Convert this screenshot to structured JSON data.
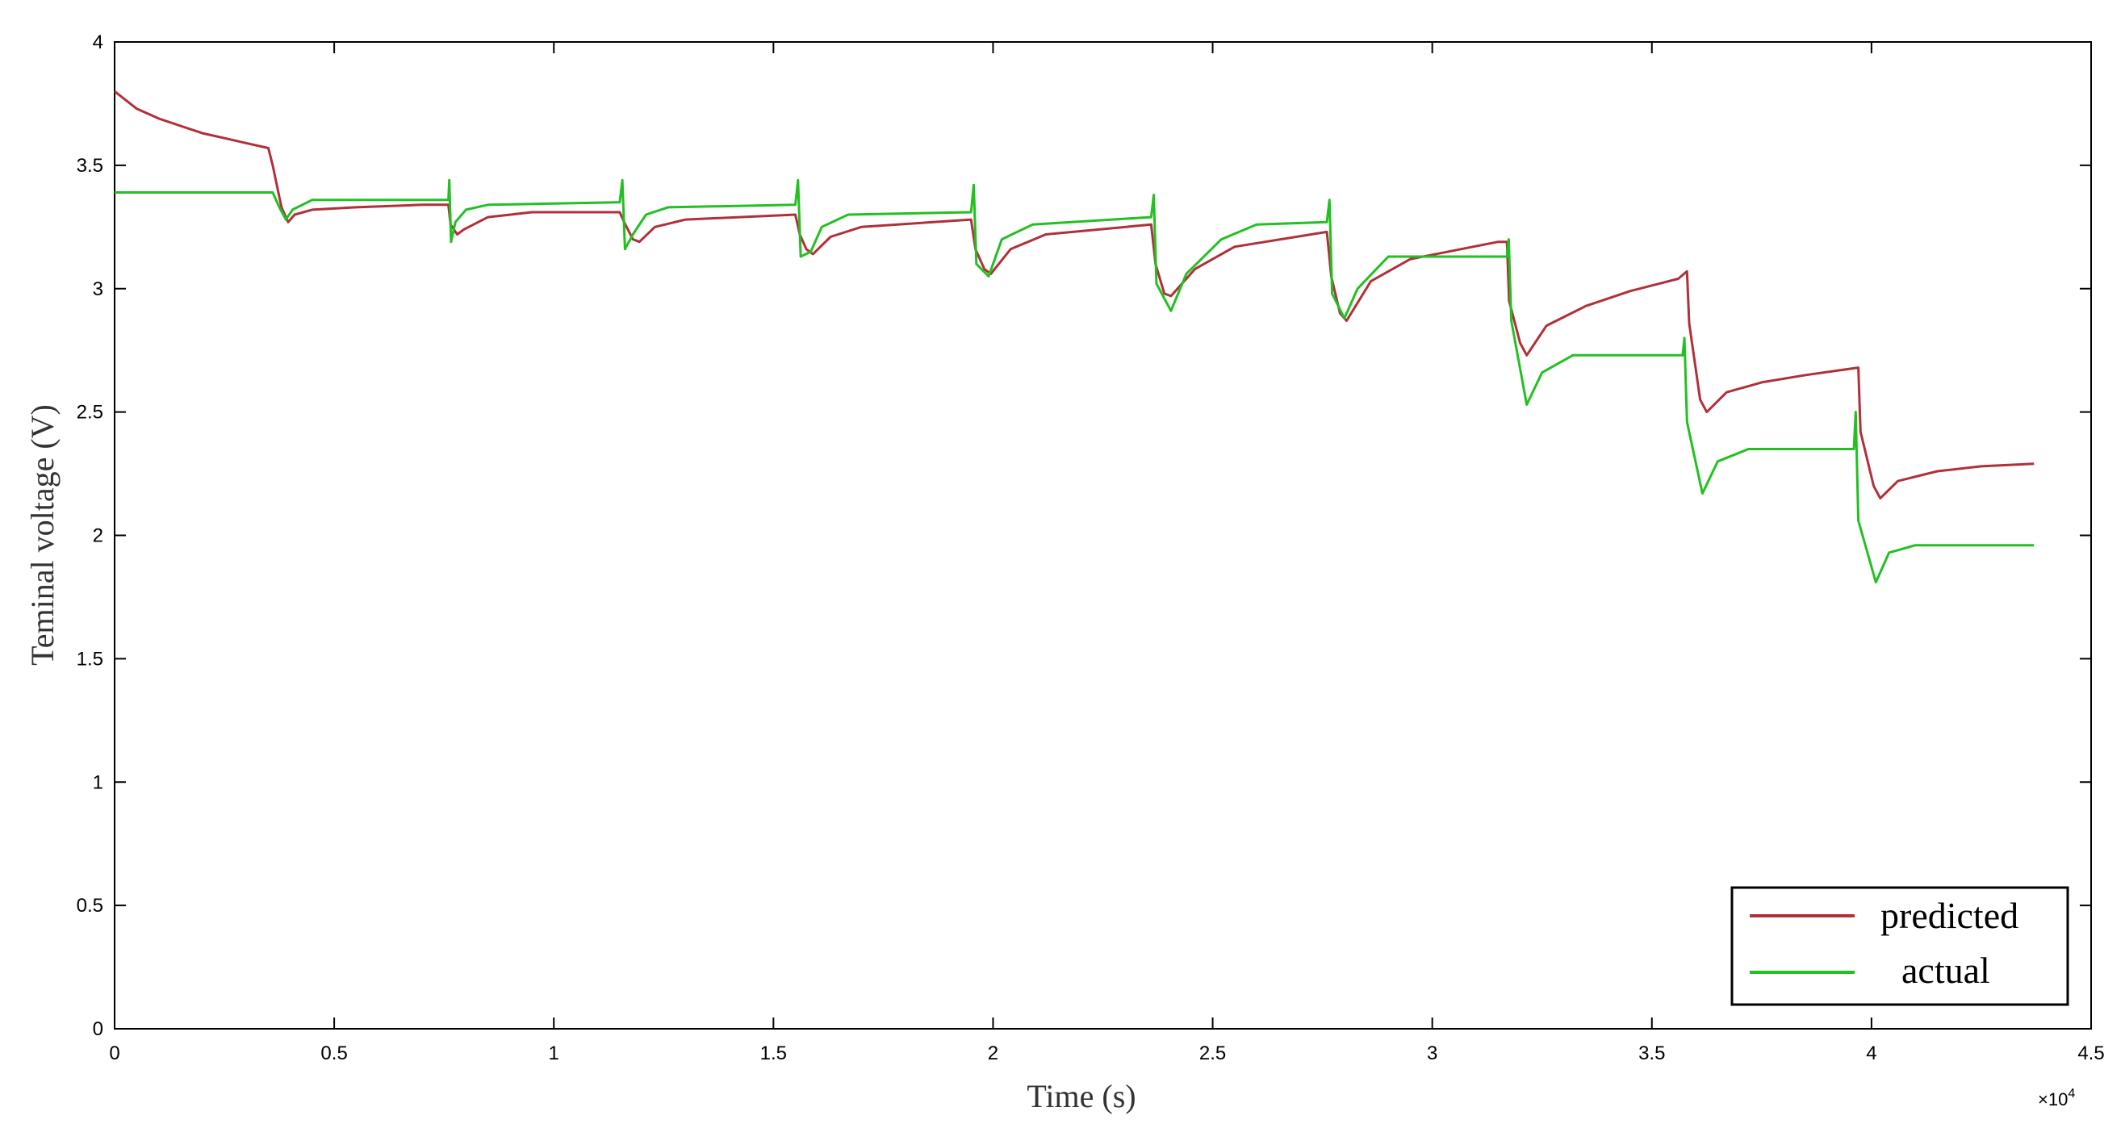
{
  "chart_data": {
    "type": "line",
    "xlabel": "Time (s)",
    "ylabel": "Teminal voltage (V)",
    "x_exponent_label": "×10",
    "x_exponent_power": "4",
    "xlim": [
      0,
      45000
    ],
    "ylim": [
      0,
      4
    ],
    "xticks": [
      {
        "value": 0,
        "label": "0"
      },
      {
        "value": 5000,
        "label": "0.5"
      },
      {
        "value": 10000,
        "label": "1"
      },
      {
        "value": 15000,
        "label": "1.5"
      },
      {
        "value": 20000,
        "label": "2"
      },
      {
        "value": 25000,
        "label": "2.5"
      },
      {
        "value": 30000,
        "label": "3"
      },
      {
        "value": 35000,
        "label": "3.5"
      },
      {
        "value": 40000,
        "label": "4"
      },
      {
        "value": 45000,
        "label": "4.5"
      }
    ],
    "yticks": [
      {
        "value": 0,
        "label": "0"
      },
      {
        "value": 0.5,
        "label": "0.5"
      },
      {
        "value": 1,
        "label": "1"
      },
      {
        "value": 1.5,
        "label": "1.5"
      },
      {
        "value": 2,
        "label": "2"
      },
      {
        "value": 2.5,
        "label": "2.5"
      },
      {
        "value": 3,
        "label": "3"
      },
      {
        "value": 3.5,
        "label": "3.5"
      },
      {
        "value": 4,
        "label": "4"
      }
    ],
    "grid": false,
    "legend_position": "bottom-right",
    "series": [
      {
        "name": "predicted",
        "color": "#b0303a",
        "points": [
          [
            0,
            3.8
          ],
          [
            500,
            3.73
          ],
          [
            1000,
            3.69
          ],
          [
            1500,
            3.66
          ],
          [
            2000,
            3.63
          ],
          [
            2500,
            3.61
          ],
          [
            3000,
            3.59
          ],
          [
            3500,
            3.57
          ],
          [
            3600,
            3.5
          ],
          [
            3800,
            3.33
          ],
          [
            3950,
            3.27
          ],
          [
            4100,
            3.3
          ],
          [
            4500,
            3.32
          ],
          [
            5500,
            3.33
          ],
          [
            7000,
            3.34
          ],
          [
            7600,
            3.34
          ],
          [
            7650,
            3.26
          ],
          [
            7800,
            3.22
          ],
          [
            7950,
            3.24
          ],
          [
            8500,
            3.29
          ],
          [
            9500,
            3.31
          ],
          [
            11500,
            3.31
          ],
          [
            11600,
            3.27
          ],
          [
            11800,
            3.2
          ],
          [
            11950,
            3.19
          ],
          [
            12300,
            3.25
          ],
          [
            13000,
            3.28
          ],
          [
            15500,
            3.3
          ],
          [
            15600,
            3.22
          ],
          [
            15750,
            3.16
          ],
          [
            15900,
            3.14
          ],
          [
            16300,
            3.21
          ],
          [
            17000,
            3.25
          ],
          [
            19500,
            3.28
          ],
          [
            19600,
            3.16
          ],
          [
            19800,
            3.08
          ],
          [
            19950,
            3.06
          ],
          [
            20400,
            3.16
          ],
          [
            21200,
            3.22
          ],
          [
            23600,
            3.26
          ],
          [
            23700,
            3.1
          ],
          [
            23900,
            2.98
          ],
          [
            24050,
            2.97
          ],
          [
            24600,
            3.08
          ],
          [
            25500,
            3.17
          ],
          [
            27600,
            3.23
          ],
          [
            27700,
            3.05
          ],
          [
            27900,
            2.9
          ],
          [
            28050,
            2.87
          ],
          [
            28600,
            3.03
          ],
          [
            29500,
            3.12
          ],
          [
            31500,
            3.19
          ],
          [
            31700,
            3.19
          ],
          [
            31750,
            2.95
          ],
          [
            32000,
            2.78
          ],
          [
            32150,
            2.73
          ],
          [
            32600,
            2.85
          ],
          [
            33500,
            2.93
          ],
          [
            34500,
            2.99
          ],
          [
            35600,
            3.04
          ],
          [
            35800,
            3.07
          ],
          [
            35850,
            2.86
          ],
          [
            36100,
            2.55
          ],
          [
            36250,
            2.5
          ],
          [
            36700,
            2.58
          ],
          [
            37500,
            2.62
          ],
          [
            38500,
            2.65
          ],
          [
            39700,
            2.68
          ],
          [
            39750,
            2.42
          ],
          [
            40050,
            2.2
          ],
          [
            40200,
            2.15
          ],
          [
            40600,
            2.22
          ],
          [
            41500,
            2.26
          ],
          [
            42500,
            2.28
          ],
          [
            43700,
            2.29
          ]
        ]
      },
      {
        "name": "actual",
        "color": "#22c022",
        "points": [
          [
            0,
            3.39
          ],
          [
            3600,
            3.39
          ],
          [
            3750,
            3.33
          ],
          [
            3900,
            3.28
          ],
          [
            4050,
            3.32
          ],
          [
            4500,
            3.36
          ],
          [
            7600,
            3.36
          ],
          [
            7620,
            3.44
          ],
          [
            7660,
            3.19
          ],
          [
            7760,
            3.27
          ],
          [
            8000,
            3.32
          ],
          [
            8500,
            3.34
          ],
          [
            11500,
            3.35
          ],
          [
            11560,
            3.44
          ],
          [
            11620,
            3.16
          ],
          [
            11800,
            3.22
          ],
          [
            12100,
            3.3
          ],
          [
            12600,
            3.33
          ],
          [
            15500,
            3.34
          ],
          [
            15560,
            3.44
          ],
          [
            15620,
            3.13
          ],
          [
            15850,
            3.15
          ],
          [
            16100,
            3.25
          ],
          [
            16700,
            3.3
          ],
          [
            19500,
            3.31
          ],
          [
            19560,
            3.42
          ],
          [
            19620,
            3.1
          ],
          [
            19900,
            3.05
          ],
          [
            20200,
            3.2
          ],
          [
            20900,
            3.26
          ],
          [
            23600,
            3.29
          ],
          [
            23660,
            3.38
          ],
          [
            23720,
            3.02
          ],
          [
            24050,
            2.91
          ],
          [
            24400,
            3.06
          ],
          [
            25200,
            3.2
          ],
          [
            26000,
            3.26
          ],
          [
            27600,
            3.27
          ],
          [
            27660,
            3.36
          ],
          [
            27720,
            2.98
          ],
          [
            28000,
            2.88
          ],
          [
            28300,
            3.0
          ],
          [
            29000,
            3.13
          ],
          [
            31700,
            3.13
          ],
          [
            31740,
            3.2
          ],
          [
            31800,
            2.87
          ],
          [
            32150,
            2.53
          ],
          [
            32500,
            2.66
          ],
          [
            33200,
            2.73
          ],
          [
            35700,
            2.73
          ],
          [
            35740,
            2.8
          ],
          [
            35800,
            2.46
          ],
          [
            36150,
            2.17
          ],
          [
            36500,
            2.3
          ],
          [
            37200,
            2.35
          ],
          [
            39600,
            2.35
          ],
          [
            39640,
            2.5
          ],
          [
            39700,
            2.06
          ],
          [
            40100,
            1.81
          ],
          [
            40400,
            1.93
          ],
          [
            41000,
            1.96
          ],
          [
            43700,
            1.96
          ]
        ]
      }
    ]
  }
}
